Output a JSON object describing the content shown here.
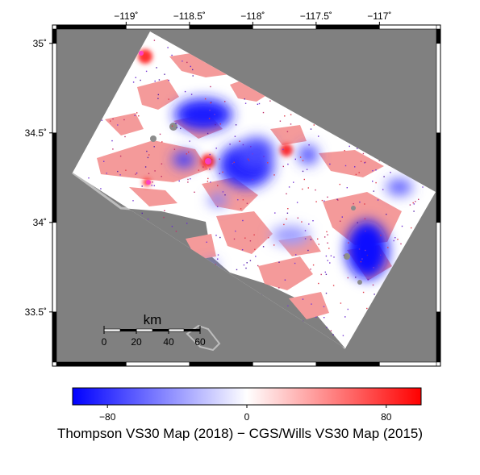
{
  "map": {
    "lon_ticks": [
      {
        "lon": -119,
        "label": "−119˚"
      },
      {
        "lon": -118.5,
        "label": "−118.5˚"
      },
      {
        "lon": -118,
        "label": "−118˚"
      },
      {
        "lon": -117.5,
        "label": "−117.5˚"
      },
      {
        "lon": -117,
        "label": "−117˚"
      }
    ],
    "lat_ticks": [
      {
        "lat": 35,
        "label": "35˚"
      },
      {
        "lat": 34.5,
        "label": "34.5˚"
      },
      {
        "lat": 34,
        "label": "34˚"
      },
      {
        "lat": 33.5,
        "label": "33.5˚"
      }
    ],
    "lon_range": [
      -119.55,
      -116.55
    ],
    "lat_range": [
      33.22,
      35.08
    ],
    "background_color": "#808080",
    "scale_bar": {
      "title": "km",
      "labels": [
        "0",
        "20",
        "40",
        "60"
      ]
    }
  },
  "colorbar": {
    "range": [
      -100,
      100
    ],
    "ticks": [
      {
        "value": -80,
        "label": "−80"
      },
      {
        "value": 0,
        "label": "0"
      },
      {
        "value": 80,
        "label": "80"
      }
    ],
    "colors": {
      "low": "#0000ff",
      "mid": "#ffffff",
      "high": "#ff0000"
    },
    "title": "Thompson VS30 Map (2018) − CGS/Wills VS30 Map (2015)"
  }
}
